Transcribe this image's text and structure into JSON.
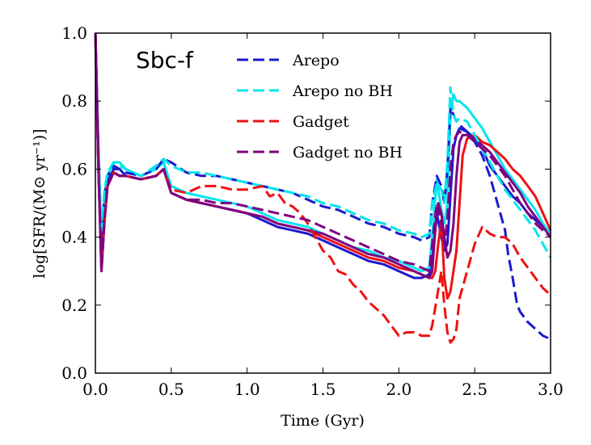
{
  "chart_data": {
    "type": "line",
    "title": "Sbc-f",
    "xlabel": "Time (Gyr)",
    "ylabel": "log[SFR/(M⊙ yr⁻¹)]",
    "xlim": [
      0.0,
      3.0
    ],
    "ylim": [
      0.0,
      1.0
    ],
    "xticks": [
      "0.0",
      "0.5",
      "1.0",
      "1.5",
      "2.0",
      "2.5",
      "3.0"
    ],
    "yticks": [
      "0.0",
      "0.2",
      "0.4",
      "0.6",
      "0.8",
      "1.0"
    ],
    "legend_position": "top-center",
    "series": [
      {
        "name": "Arepo",
        "color": "#1a1acd",
        "style": "solid",
        "x": [
          0.0,
          0.02,
          0.04,
          0.06,
          0.08,
          0.12,
          0.16,
          0.2,
          0.3,
          0.4,
          0.45,
          0.5,
          0.6,
          0.7,
          0.8,
          0.9,
          1.0,
          1.1,
          1.2,
          1.3,
          1.4,
          1.5,
          1.6,
          1.7,
          1.8,
          1.9,
          2.0,
          2.1,
          2.15,
          2.2,
          2.22,
          2.25,
          2.28,
          2.3,
          2.32,
          2.34,
          2.36,
          2.38,
          2.4,
          2.45,
          2.5,
          2.55,
          2.6,
          2.65,
          2.7,
          2.75,
          2.8,
          2.85,
          2.9,
          2.95,
          3.0
        ],
        "y": [
          1.0,
          0.65,
          0.38,
          0.5,
          0.56,
          0.6,
          0.6,
          0.58,
          0.57,
          0.58,
          0.6,
          0.53,
          0.51,
          0.5,
          0.49,
          0.48,
          0.47,
          0.45,
          0.43,
          0.42,
          0.41,
          0.39,
          0.37,
          0.35,
          0.33,
          0.32,
          0.3,
          0.28,
          0.28,
          0.29,
          0.36,
          0.47,
          0.4,
          0.36,
          0.38,
          0.52,
          0.66,
          0.7,
          0.72,
          0.71,
          0.69,
          0.66,
          0.61,
          0.58,
          0.55,
          0.52,
          0.5,
          0.47,
          0.45,
          0.43,
          0.41
        ]
      },
      {
        "name": "Arepo no BH",
        "color": "#00e5ee",
        "style": "solid",
        "x": [
          0.0,
          0.02,
          0.04,
          0.06,
          0.08,
          0.12,
          0.16,
          0.2,
          0.3,
          0.4,
          0.45,
          0.5,
          0.6,
          0.7,
          0.8,
          0.9,
          1.0,
          1.1,
          1.2,
          1.3,
          1.4,
          1.5,
          1.6,
          1.7,
          1.8,
          1.9,
          2.0,
          2.1,
          2.15,
          2.2,
          2.22,
          2.25,
          2.28,
          2.3,
          2.32,
          2.34,
          2.36,
          2.38,
          2.4,
          2.45,
          2.5,
          2.55,
          2.6,
          2.65,
          2.7,
          2.75,
          2.8,
          2.85,
          2.9,
          2.95,
          3.0
        ],
        "y": [
          1.0,
          0.62,
          0.4,
          0.53,
          0.58,
          0.62,
          0.62,
          0.6,
          0.58,
          0.6,
          0.62,
          0.55,
          0.53,
          0.52,
          0.51,
          0.5,
          0.49,
          0.47,
          0.45,
          0.44,
          0.43,
          0.41,
          0.39,
          0.37,
          0.36,
          0.34,
          0.33,
          0.31,
          0.3,
          0.31,
          0.4,
          0.57,
          0.48,
          0.44,
          0.5,
          0.76,
          0.82,
          0.8,
          0.8,
          0.78,
          0.75,
          0.72,
          0.68,
          0.64,
          0.6,
          0.57,
          0.54,
          0.51,
          0.48,
          0.44,
          0.41
        ]
      },
      {
        "name": "Gadget",
        "color": "#ee1111",
        "style": "solid",
        "x": [
          0.0,
          0.02,
          0.04,
          0.06,
          0.08,
          0.12,
          0.16,
          0.2,
          0.3,
          0.4,
          0.45,
          0.5,
          0.6,
          0.7,
          0.8,
          0.9,
          1.0,
          1.1,
          1.2,
          1.3,
          1.4,
          1.5,
          1.6,
          1.7,
          1.8,
          1.9,
          2.0,
          2.1,
          2.15,
          2.2,
          2.22,
          2.24,
          2.26,
          2.28,
          2.3,
          2.32,
          2.34,
          2.36,
          2.38,
          2.4,
          2.42,
          2.45,
          2.5,
          2.55,
          2.6,
          2.65,
          2.7,
          2.75,
          2.8,
          2.85,
          2.9,
          2.95,
          3.0
        ],
        "y": [
          1.0,
          0.6,
          0.31,
          0.45,
          0.55,
          0.59,
          0.58,
          0.58,
          0.57,
          0.58,
          0.6,
          0.53,
          0.51,
          0.5,
          0.49,
          0.48,
          0.47,
          0.46,
          0.44,
          0.43,
          0.42,
          0.4,
          0.38,
          0.36,
          0.34,
          0.33,
          0.31,
          0.3,
          0.29,
          0.28,
          0.28,
          0.3,
          0.38,
          0.45,
          0.28,
          0.22,
          0.24,
          0.3,
          0.36,
          0.5,
          0.64,
          0.69,
          0.7,
          0.68,
          0.67,
          0.65,
          0.63,
          0.6,
          0.58,
          0.55,
          0.52,
          0.47,
          0.42
        ]
      },
      {
        "name": "Gadget no BH",
        "color": "#800080",
        "style": "solid",
        "x": [
          0.0,
          0.02,
          0.04,
          0.06,
          0.08,
          0.12,
          0.16,
          0.2,
          0.3,
          0.4,
          0.45,
          0.5,
          0.6,
          0.7,
          0.8,
          0.9,
          1.0,
          1.1,
          1.2,
          1.3,
          1.4,
          1.5,
          1.6,
          1.7,
          1.8,
          1.9,
          2.0,
          2.1,
          2.15,
          2.2,
          2.22,
          2.24,
          2.26,
          2.28,
          2.3,
          2.32,
          2.34,
          2.36,
          2.38,
          2.4,
          2.42,
          2.45,
          2.5,
          2.55,
          2.6,
          2.65,
          2.7,
          2.75,
          2.8,
          2.85,
          2.9,
          2.95,
          3.0
        ],
        "y": [
          1.0,
          0.6,
          0.3,
          0.45,
          0.55,
          0.59,
          0.58,
          0.58,
          0.57,
          0.58,
          0.6,
          0.53,
          0.51,
          0.5,
          0.49,
          0.48,
          0.47,
          0.46,
          0.44,
          0.43,
          0.42,
          0.41,
          0.39,
          0.37,
          0.35,
          0.34,
          0.32,
          0.3,
          0.29,
          0.28,
          0.3,
          0.42,
          0.5,
          0.47,
          0.4,
          0.34,
          0.36,
          0.44,
          0.58,
          0.68,
          0.7,
          0.7,
          0.69,
          0.67,
          0.65,
          0.62,
          0.59,
          0.56,
          0.53,
          0.49,
          0.46,
          0.43,
          0.4
        ]
      },
      {
        "name": "Arepo (dashed)",
        "color": "#1a1acd",
        "style": "dashed",
        "x": [
          0.0,
          0.02,
          0.04,
          0.06,
          0.08,
          0.12,
          0.16,
          0.2,
          0.3,
          0.4,
          0.45,
          0.5,
          0.6,
          0.7,
          0.8,
          0.9,
          1.0,
          1.1,
          1.2,
          1.3,
          1.4,
          1.5,
          1.6,
          1.7,
          1.8,
          1.9,
          2.0,
          2.1,
          2.15,
          2.2,
          2.22,
          2.25,
          2.28,
          2.3,
          2.32,
          2.34,
          2.36,
          2.38,
          2.4,
          2.45,
          2.5,
          2.55,
          2.6,
          2.65,
          2.7,
          2.72,
          2.75,
          2.78,
          2.8,
          2.85,
          2.9,
          2.95,
          3.0
        ],
        "y": [
          1.0,
          0.64,
          0.4,
          0.52,
          0.58,
          0.61,
          0.6,
          0.59,
          0.58,
          0.6,
          0.63,
          0.62,
          0.59,
          0.58,
          0.58,
          0.57,
          0.56,
          0.55,
          0.54,
          0.53,
          0.51,
          0.49,
          0.48,
          0.46,
          0.44,
          0.43,
          0.41,
          0.4,
          0.39,
          0.4,
          0.5,
          0.58,
          0.55,
          0.5,
          0.6,
          0.78,
          0.76,
          0.74,
          0.73,
          0.71,
          0.68,
          0.64,
          0.58,
          0.5,
          0.42,
          0.35,
          0.28,
          0.2,
          0.18,
          0.15,
          0.13,
          0.11,
          0.1
        ]
      },
      {
        "name": "Arepo no BH (dashed)",
        "color": "#00e5ee",
        "style": "dashed",
        "x": [
          0.0,
          0.02,
          0.04,
          0.06,
          0.08,
          0.12,
          0.16,
          0.2,
          0.3,
          0.4,
          0.45,
          0.5,
          0.6,
          0.7,
          0.8,
          0.9,
          1.0,
          1.1,
          1.2,
          1.3,
          1.4,
          1.5,
          1.6,
          1.7,
          1.8,
          1.9,
          2.0,
          2.1,
          2.15,
          2.2,
          2.22,
          2.25,
          2.28,
          2.3,
          2.32,
          2.34,
          2.36,
          2.38,
          2.4,
          2.45,
          2.5,
          2.55,
          2.6,
          2.65,
          2.7,
          2.75,
          2.8,
          2.85,
          2.9,
          2.95,
          3.0
        ],
        "y": [
          1.0,
          0.63,
          0.42,
          0.54,
          0.59,
          0.62,
          0.61,
          0.6,
          0.58,
          0.61,
          0.63,
          0.61,
          0.59,
          0.59,
          0.58,
          0.57,
          0.56,
          0.55,
          0.54,
          0.53,
          0.52,
          0.5,
          0.49,
          0.47,
          0.45,
          0.44,
          0.42,
          0.41,
          0.4,
          0.41,
          0.5,
          0.56,
          0.54,
          0.5,
          0.62,
          0.84,
          0.76,
          0.74,
          0.75,
          0.74,
          0.7,
          0.66,
          0.62,
          0.58,
          0.54,
          0.51,
          0.48,
          0.45,
          0.42,
          0.38,
          0.34
        ]
      },
      {
        "name": "Gadget (dashed)",
        "color": "#ee1111",
        "style": "dashed",
        "x": [
          0.0,
          0.02,
          0.04,
          0.06,
          0.08,
          0.12,
          0.16,
          0.2,
          0.3,
          0.4,
          0.45,
          0.5,
          0.6,
          0.7,
          0.8,
          0.9,
          1.0,
          1.1,
          1.15,
          1.2,
          1.25,
          1.3,
          1.35,
          1.4,
          1.45,
          1.5,
          1.55,
          1.6,
          1.65,
          1.7,
          1.75,
          1.8,
          1.85,
          1.9,
          1.95,
          2.0,
          2.05,
          2.1,
          2.15,
          2.2,
          2.22,
          2.25,
          2.28,
          2.3,
          2.32,
          2.34,
          2.36,
          2.38,
          2.4,
          2.45,
          2.5,
          2.55,
          2.6,
          2.65,
          2.7,
          2.75,
          2.8,
          2.85,
          2.9,
          2.95,
          3.0
        ],
        "y": [
          1.0,
          0.6,
          0.32,
          0.46,
          0.55,
          0.59,
          0.58,
          0.58,
          0.57,
          0.58,
          0.6,
          0.54,
          0.53,
          0.55,
          0.55,
          0.54,
          0.54,
          0.55,
          0.52,
          0.53,
          0.5,
          0.49,
          0.47,
          0.44,
          0.4,
          0.36,
          0.34,
          0.3,
          0.29,
          0.26,
          0.24,
          0.21,
          0.19,
          0.17,
          0.14,
          0.11,
          0.12,
          0.12,
          0.11,
          0.11,
          0.14,
          0.22,
          0.3,
          0.2,
          0.12,
          0.09,
          0.1,
          0.13,
          0.22,
          0.3,
          0.38,
          0.43,
          0.41,
          0.4,
          0.4,
          0.38,
          0.34,
          0.31,
          0.28,
          0.25,
          0.23
        ]
      },
      {
        "name": "Gadget no BH (dashed)",
        "color": "#800080",
        "style": "dashed",
        "x": [
          0.0,
          0.02,
          0.04,
          0.06,
          0.08,
          0.12,
          0.16,
          0.2,
          0.3,
          0.4,
          0.45,
          0.5,
          0.6,
          0.7,
          0.8,
          0.9,
          1.0,
          1.1,
          1.2,
          1.3,
          1.4,
          1.5,
          1.6,
          1.7,
          1.8,
          1.9,
          2.0,
          2.1,
          2.15,
          2.2,
          2.22,
          2.25,
          2.28,
          2.3,
          2.32,
          2.34,
          2.36,
          2.38,
          2.4,
          2.45,
          2.5,
          2.55,
          2.6,
          2.65,
          2.7,
          2.75,
          2.8,
          2.85,
          2.9,
          2.95,
          3.0
        ],
        "y": [
          1.0,
          0.6,
          0.3,
          0.45,
          0.55,
          0.59,
          0.58,
          0.58,
          0.57,
          0.58,
          0.6,
          0.53,
          0.51,
          0.51,
          0.5,
          0.5,
          0.49,
          0.48,
          0.47,
          0.46,
          0.45,
          0.43,
          0.41,
          0.39,
          0.37,
          0.35,
          0.33,
          0.32,
          0.31,
          0.3,
          0.38,
          0.5,
          0.44,
          0.38,
          0.45,
          0.6,
          0.68,
          0.7,
          0.71,
          0.7,
          0.68,
          0.66,
          0.64,
          0.61,
          0.58,
          0.54,
          0.5,
          0.47,
          0.44,
          0.42,
          0.4
        ]
      }
    ]
  },
  "legend": {
    "items": [
      {
        "label": "Arepo",
        "color": "#1a1acd"
      },
      {
        "label": "Arepo no BH",
        "color": "#00e5ee"
      },
      {
        "label": "Gadget",
        "color": "#ee1111"
      },
      {
        "label": "Gadget no BH",
        "color": "#800080"
      }
    ]
  }
}
